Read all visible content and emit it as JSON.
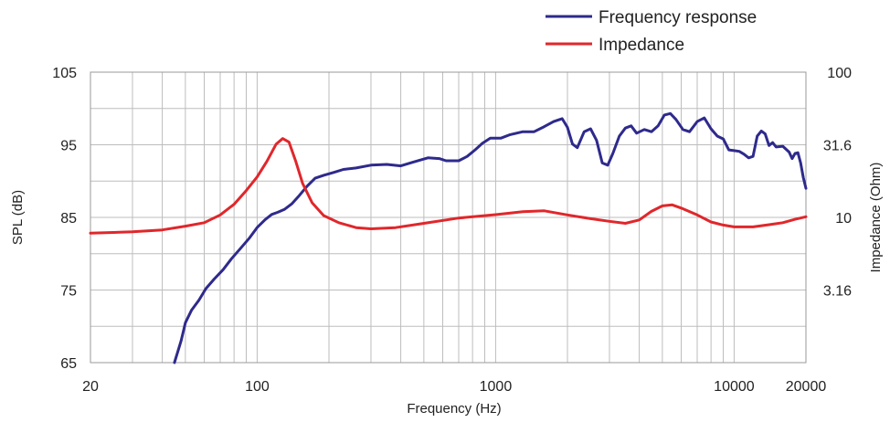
{
  "chart_data": {
    "type": "line",
    "title": "",
    "xlabel": "Frequency (Hz)",
    "ylabel": "SPL (dB)",
    "y2label": "Impedance (Ohm)",
    "xscale": "log",
    "xlim": [
      20,
      20000
    ],
    "ylim": [
      65,
      105
    ],
    "y2scale": "log",
    "y2lim": [
      1,
      316
    ],
    "grid": true,
    "legend_position": "top-right",
    "x_ticks": [
      {
        "value": 20,
        "label": "20"
      },
      {
        "value": 100,
        "label": "100"
      },
      {
        "value": 1000,
        "label": "1000"
      },
      {
        "value": 10000,
        "label": "10000"
      },
      {
        "value": 20000,
        "label": "20000"
      }
    ],
    "y_ticks": [
      {
        "value": 65,
        "label": "65"
      },
      {
        "value": 75,
        "label": "75"
      },
      {
        "value": 85,
        "label": "85"
      },
      {
        "value": 95,
        "label": "95"
      },
      {
        "value": 105,
        "label": "105"
      }
    ],
    "y2_ticks": [
      {
        "value": 3.16,
        "label": "3.16"
      },
      {
        "value": 10,
        "label": "10"
      },
      {
        "value": 31.6,
        "label": "31.6"
      },
      {
        "value": 100,
        "label": "100"
      }
    ],
    "series": [
      {
        "name": "Frequency response",
        "axis": "left",
        "color": "#2e2a8c",
        "points": [
          [
            45,
            65
          ],
          [
            48,
            68
          ],
          [
            50,
            70.5
          ],
          [
            53,
            72.2
          ],
          [
            57,
            73.6
          ],
          [
            61,
            75.2
          ],
          [
            66,
            76.5
          ],
          [
            72,
            77.8
          ],
          [
            78,
            79.3
          ],
          [
            85,
            80.7
          ],
          [
            93,
            82.2
          ],
          [
            100,
            83.6
          ],
          [
            108,
            84.7
          ],
          [
            115,
            85.4
          ],
          [
            122,
            85.7
          ],
          [
            130,
            86.1
          ],
          [
            140,
            86.9
          ],
          [
            150,
            88
          ],
          [
            162,
            89.3
          ],
          [
            175,
            90.4
          ],
          [
            190,
            90.8
          ],
          [
            210,
            91.2
          ],
          [
            230,
            91.6
          ],
          [
            260,
            91.8
          ],
          [
            300,
            92.2
          ],
          [
            350,
            92.3
          ],
          [
            400,
            92.1
          ],
          [
            450,
            92.6
          ],
          [
            520,
            93.2
          ],
          [
            580,
            93.1
          ],
          [
            620,
            92.8
          ],
          [
            700,
            92.8
          ],
          [
            760,
            93.4
          ],
          [
            820,
            94.3
          ],
          [
            880,
            95.2
          ],
          [
            950,
            95.9
          ],
          [
            1050,
            95.9
          ],
          [
            1150,
            96.4
          ],
          [
            1300,
            96.8
          ],
          [
            1450,
            96.8
          ],
          [
            1600,
            97.5
          ],
          [
            1750,
            98.2
          ],
          [
            1900,
            98.6
          ],
          [
            2000,
            97.4
          ],
          [
            2100,
            95.1
          ],
          [
            2200,
            94.6
          ],
          [
            2350,
            96.8
          ],
          [
            2500,
            97.2
          ],
          [
            2650,
            95.6
          ],
          [
            2800,
            92.5
          ],
          [
            2950,
            92.2
          ],
          [
            3100,
            93.8
          ],
          [
            3300,
            96.2
          ],
          [
            3500,
            97.3
          ],
          [
            3700,
            97.6
          ],
          [
            3900,
            96.6
          ],
          [
            4200,
            97.1
          ],
          [
            4500,
            96.8
          ],
          [
            4800,
            97.6
          ],
          [
            5100,
            99.1
          ],
          [
            5400,
            99.3
          ],
          [
            5700,
            98.5
          ],
          [
            6100,
            97.1
          ],
          [
            6500,
            96.8
          ],
          [
            7000,
            98.2
          ],
          [
            7500,
            98.7
          ],
          [
            8000,
            97.2
          ],
          [
            8500,
            96.2
          ],
          [
            9000,
            95.8
          ],
          [
            9500,
            94.3
          ],
          [
            10000,
            94.2
          ],
          [
            10500,
            94.1
          ],
          [
            11000,
            93.7
          ],
          [
            11500,
            93.2
          ],
          [
            12000,
            93.4
          ],
          [
            12500,
            96.2
          ],
          [
            13000,
            96.9
          ],
          [
            13500,
            96.5
          ],
          [
            14000,
            94.9
          ],
          [
            14500,
            95.3
          ],
          [
            15000,
            94.7
          ],
          [
            16000,
            94.8
          ],
          [
            17000,
            94
          ],
          [
            17500,
            93.1
          ],
          [
            18000,
            93.8
          ],
          [
            18500,
            93.9
          ],
          [
            19000,
            92.5
          ],
          [
            19500,
            90.5
          ],
          [
            20000,
            89
          ]
        ]
      },
      {
        "name": "Impedance",
        "axis": "right",
        "color": "#e0272b",
        "points": [
          [
            20,
            7.8
          ],
          [
            30,
            7.95
          ],
          [
            40,
            8.2
          ],
          [
            50,
            8.7
          ],
          [
            60,
            9.2
          ],
          [
            70,
            10.4
          ],
          [
            80,
            12.3
          ],
          [
            90,
            15.3
          ],
          [
            100,
            19
          ],
          [
            110,
            24.4
          ],
          [
            120,
            31.9
          ],
          [
            128,
            34.9
          ],
          [
            136,
            33
          ],
          [
            145,
            24.5
          ],
          [
            155,
            17.2
          ],
          [
            170,
            12.6
          ],
          [
            190,
            10.3
          ],
          [
            220,
            9.2
          ],
          [
            260,
            8.5
          ],
          [
            300,
            8.35
          ],
          [
            380,
            8.5
          ],
          [
            500,
            9.1
          ],
          [
            700,
            9.9
          ],
          [
            1000,
            10.45
          ],
          [
            1300,
            10.95
          ],
          [
            1600,
            11.1
          ],
          [
            2000,
            10.4
          ],
          [
            2500,
            9.8
          ],
          [
            3000,
            9.4
          ],
          [
            3500,
            9.1
          ],
          [
            4000,
            9.6
          ],
          [
            4500,
            11
          ],
          [
            5000,
            12
          ],
          [
            5500,
            12.2
          ],
          [
            6000,
            11.6
          ],
          [
            7000,
            10.4
          ],
          [
            8000,
            9.3
          ],
          [
            9000,
            8.85
          ],
          [
            10000,
            8.6
          ],
          [
            12000,
            8.6
          ],
          [
            14000,
            8.9
          ],
          [
            16000,
            9.2
          ],
          [
            18000,
            9.7
          ],
          [
            20000,
            10.1
          ]
        ]
      }
    ]
  }
}
